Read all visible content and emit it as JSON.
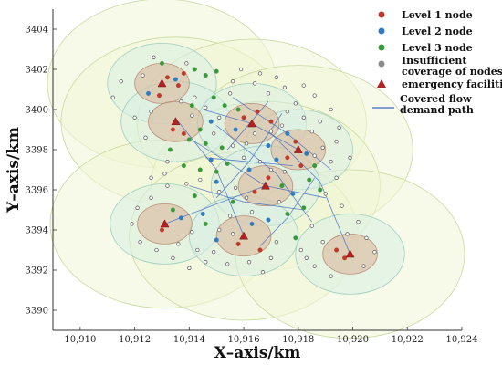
{
  "chart_data": {
    "type": "scatter",
    "xlabel": "X–axis/km",
    "ylabel": "Y–axis/km",
    "xlim": [
      10909,
      10924
    ],
    "ylim": [
      3389,
      3405
    ],
    "x_ticks": [
      10910,
      10912,
      10914,
      10916,
      10918,
      10920,
      10922,
      10924
    ],
    "x_tick_labels": [
      "10,910",
      "10,912",
      "10,914",
      "10,916",
      "10,918",
      "10,920",
      "10,922",
      "10,924"
    ],
    "y_ticks": [
      3390,
      3392,
      3394,
      3396,
      3398,
      3400,
      3402,
      3404
    ],
    "y_tick_labels": [
      "3390",
      "3392",
      "3394",
      "3396",
      "3398",
      "3400",
      "3402",
      "3404"
    ],
    "grid": false,
    "legend_position": "top-right",
    "legend": [
      {
        "label": "Level 1 node",
        "marker": "circle",
        "color": "#c0392b"
      },
      {
        "label": "Level 2 node",
        "marker": "circle",
        "color": "#2e7bbf"
      },
      {
        "label": "Level 3 node",
        "marker": "circle",
        "color": "#3a9a3a"
      },
      {
        "label": "Insufficient\ncoverage of nodes",
        "marker": "circle",
        "color": "#8a8a8a"
      },
      {
        "label": "emergency facilities",
        "marker": "triangle",
        "color": "#b22222"
      },
      {
        "label": "Covered flow\ndemand path",
        "marker": "line",
        "color": "#3b66c4"
      }
    ],
    "facilities": [
      {
        "x": 10913.0,
        "y": 3401.3
      },
      {
        "x": 10913.5,
        "y": 3399.4
      },
      {
        "x": 10916.3,
        "y": 3399.3
      },
      {
        "x": 10918.0,
        "y": 3398.0
      },
      {
        "x": 10916.8,
        "y": 3396.2
      },
      {
        "x": 10913.1,
        "y": 3394.3
      },
      {
        "x": 10916.0,
        "y": 3393.7
      },
      {
        "x": 10919.9,
        "y": 3392.8
      }
    ],
    "coverage_radii_km": {
      "outer": 4.2,
      "middle": 2.0,
      "inner": 1.0
    },
    "series": [
      {
        "name": "Level 1 node",
        "points": [
          [
            10913.2,
            3401.6
          ],
          [
            10913.6,
            3401.2
          ],
          [
            10913.8,
            3401.8
          ],
          [
            10912.9,
            3400.7
          ],
          [
            10913.4,
            3399.0
          ],
          [
            10913.8,
            3398.8
          ],
          [
            10916.0,
            3399.6
          ],
          [
            10916.5,
            3399.9
          ],
          [
            10917.0,
            3399.4
          ],
          [
            10917.9,
            3398.4
          ],
          [
            10917.6,
            3397.6
          ],
          [
            10918.1,
            3397.2
          ],
          [
            10916.9,
            3396.6
          ],
          [
            10916.4,
            3395.9
          ],
          [
            10913.0,
            3394.0
          ],
          [
            10915.8,
            3393.3
          ],
          [
            10916.6,
            3393.0
          ],
          [
            10919.7,
            3392.6
          ],
          [
            10919.4,
            3393.0
          ]
        ]
      },
      {
        "name": "Level 2 node",
        "points": [
          [
            10913.5,
            3401.5
          ],
          [
            10912.5,
            3400.8
          ],
          [
            10914.8,
            3399.4
          ],
          [
            10915.7,
            3399.0
          ],
          [
            10916.9,
            3398.2
          ],
          [
            10917.6,
            3398.8
          ],
          [
            10918.3,
            3397.8
          ],
          [
            10917.2,
            3397.5
          ],
          [
            10916.2,
            3397.0
          ],
          [
            10914.8,
            3397.5
          ],
          [
            10915.0,
            3396.4
          ],
          [
            10917.8,
            3395.8
          ],
          [
            10914.5,
            3394.8
          ],
          [
            10913.7,
            3394.6
          ],
          [
            10916.9,
            3394.5
          ],
          [
            10916.3,
            3394.3
          ],
          [
            10915.0,
            3393.5
          ]
        ]
      },
      {
        "name": "Level 3 node",
        "points": [
          [
            10914.2,
            3402.0
          ],
          [
            10914.6,
            3401.7
          ],
          [
            10915.0,
            3401.9
          ],
          [
            10913.0,
            3402.3
          ],
          [
            10914.1,
            3400.2
          ],
          [
            10914.9,
            3400.6
          ],
          [
            10915.3,
            3400.2
          ],
          [
            10915.8,
            3400.0
          ],
          [
            10914.4,
            3399.0
          ],
          [
            10914.0,
            3398.5
          ],
          [
            10914.6,
            3398.3
          ],
          [
            10915.2,
            3398.1
          ],
          [
            10913.3,
            3398.0
          ],
          [
            10913.8,
            3397.2
          ],
          [
            10914.4,
            3397.0
          ],
          [
            10915.4,
            3397.3
          ],
          [
            10917.4,
            3396.2
          ],
          [
            10918.4,
            3396.5
          ],
          [
            10918.6,
            3397.2
          ],
          [
            10918.8,
            3396.0
          ],
          [
            10915.0,
            3396.9
          ],
          [
            10914.2,
            3395.7
          ],
          [
            10913.4,
            3395.0
          ],
          [
            10915.6,
            3395.4
          ],
          [
            10917.6,
            3394.8
          ],
          [
            10918.2,
            3395.1
          ],
          [
            10914.6,
            3394.3
          ],
          [
            10917.9,
            3393.6
          ]
        ]
      },
      {
        "name": "Insufficient coverage of nodes",
        "points": [
          [
            10911.5,
            3401.4
          ],
          [
            10911.2,
            3400.6
          ],
          [
            10912.0,
            3399.6
          ],
          [
            10912.4,
            3398.6
          ],
          [
            10913.2,
            3397.4
          ],
          [
            10915.6,
            3401.4
          ],
          [
            10915.5,
            3400.8
          ],
          [
            10916.4,
            3401.3
          ],
          [
            10916.9,
            3400.8
          ],
          [
            10917.5,
            3401.1
          ],
          [
            10917.9,
            3400.3
          ],
          [
            10918.6,
            3400.7
          ],
          [
            10919.2,
            3400.0
          ],
          [
            10918.8,
            3399.4
          ],
          [
            10919.5,
            3399.1
          ],
          [
            10919.4,
            3398.4
          ],
          [
            10919.9,
            3397.6
          ],
          [
            10919.2,
            3397.4
          ],
          [
            10919.4,
            3396.6
          ],
          [
            10919.0,
            3395.8
          ],
          [
            10919.6,
            3395.2
          ],
          [
            10920.2,
            3394.4
          ],
          [
            10920.5,
            3393.6
          ],
          [
            10920.8,
            3392.9
          ],
          [
            10920.4,
            3392.2
          ],
          [
            10919.2,
            3391.7
          ],
          [
            10918.6,
            3392.2
          ],
          [
            10918.1,
            3393.0
          ],
          [
            10918.9,
            3393.4
          ],
          [
            10918.5,
            3394.2
          ],
          [
            10917.2,
            3393.4
          ],
          [
            10917.0,
            3392.6
          ],
          [
            10916.2,
            3392.4
          ],
          [
            10915.4,
            3392.3
          ],
          [
            10914.6,
            3392.4
          ],
          [
            10914.0,
            3392.1
          ],
          [
            10913.4,
            3392.6
          ],
          [
            10912.8,
            3393.0
          ],
          [
            10912.2,
            3393.4
          ],
          [
            10911.9,
            3394.3
          ],
          [
            10912.1,
            3395.1
          ],
          [
            10912.6,
            3395.6
          ],
          [
            10913.2,
            3396.2
          ],
          [
            10913.9,
            3396.3
          ],
          [
            10914.4,
            3396.5
          ],
          [
            10915.1,
            3395.9
          ],
          [
            10915.7,
            3396.1
          ],
          [
            10916.1,
            3395.6
          ],
          [
            10916.3,
            3394.9
          ],
          [
            10915.5,
            3394.7
          ],
          [
            10915.1,
            3394.0
          ],
          [
            10914.1,
            3393.9
          ],
          [
            10913.6,
            3393.3
          ],
          [
            10914.3,
            3393.0
          ],
          [
            10914.9,
            3392.9
          ],
          [
            10915.6,
            3393.8
          ],
          [
            10917.3,
            3395.4
          ],
          [
            10917.5,
            3396.9
          ],
          [
            10917.0,
            3397.0
          ],
          [
            10916.6,
            3397.4
          ],
          [
            10916.0,
            3397.6
          ],
          [
            10915.6,
            3398.2
          ],
          [
            10916.1,
            3398.3
          ],
          [
            10916.4,
            3398.8
          ],
          [
            10917.0,
            3398.9
          ],
          [
            10917.4,
            3399.2
          ],
          [
            10917.6,
            3399.9
          ],
          [
            10918.2,
            3399.6
          ],
          [
            10918.5,
            3398.9
          ],
          [
            10918.9,
            3398.1
          ],
          [
            10918.6,
            3397.7
          ],
          [
            10915.1,
            3399.6
          ],
          [
            10914.6,
            3400.1
          ],
          [
            10914.2,
            3400.6
          ],
          [
            10913.7,
            3400.4
          ],
          [
            10912.6,
            3399.9
          ],
          [
            10912.3,
            3401.7
          ],
          [
            10912.7,
            3402.6
          ],
          [
            10913.9,
            3402.3
          ],
          [
            10915.9,
            3402.0
          ],
          [
            10916.6,
            3401.8
          ],
          [
            10917.2,
            3401.6
          ],
          [
            10918.2,
            3401.2
          ],
          [
            10914.9,
            3398.8
          ],
          [
            10914.1,
            3399.7
          ],
          [
            10913.1,
            3396.8
          ],
          [
            10912.6,
            3396.6
          ],
          [
            10919.8,
            3393.8
          ],
          [
            10918.3,
            3392.6
          ],
          [
            10916.7,
            3391.9
          ]
        ]
      }
    ],
    "paths": [
      [
        [
          10914.5,
          3400.0
        ],
        [
          10916.3,
          3399.3
        ],
        [
          10918.0,
          3398.0
        ]
      ],
      [
        [
          10915.0,
          3399.2
        ],
        [
          10917.2,
          3396.8
        ],
        [
          10918.5,
          3394.4
        ]
      ],
      [
        [
          10914.2,
          3398.4
        ],
        [
          10916.8,
          3396.2
        ],
        [
          10919.0,
          3395.6
        ]
      ],
      [
        [
          10913.6,
          3399.4
        ],
        [
          10915.0,
          3397.0
        ],
        [
          10916.0,
          3393.7
        ]
      ],
      [
        [
          10915.6,
          3400.6
        ],
        [
          10917.6,
          3398.8
        ],
        [
          10919.2,
          3397.0
        ]
      ],
      [
        [
          10914.0,
          3396.2
        ],
        [
          10916.0,
          3395.4
        ],
        [
          10918.2,
          3395.0
        ]
      ],
      [
        [
          10917.4,
          3399.8
        ],
        [
          10916.2,
          3397.4
        ],
        [
          10915.0,
          3395.6
        ]
      ],
      [
        [
          10918.6,
          3396.6
        ],
        [
          10917.6,
          3394.6
        ],
        [
          10916.6,
          3393.2
        ]
      ],
      [
        [
          10913.1,
          3394.3
        ],
        [
          10915.2,
          3395.4
        ],
        [
          10916.8,
          3396.2
        ]
      ],
      [
        [
          10917.0,
          3398.8
        ],
        [
          10918.8,
          3396.4
        ],
        [
          10919.9,
          3392.8
        ]
      ],
      [
        [
          10915.4,
          3398.0
        ],
        [
          10916.9,
          3400.4
        ]
      ],
      [
        [
          10914.6,
          3397.6
        ],
        [
          10917.8,
          3397.2
        ]
      ]
    ]
  }
}
